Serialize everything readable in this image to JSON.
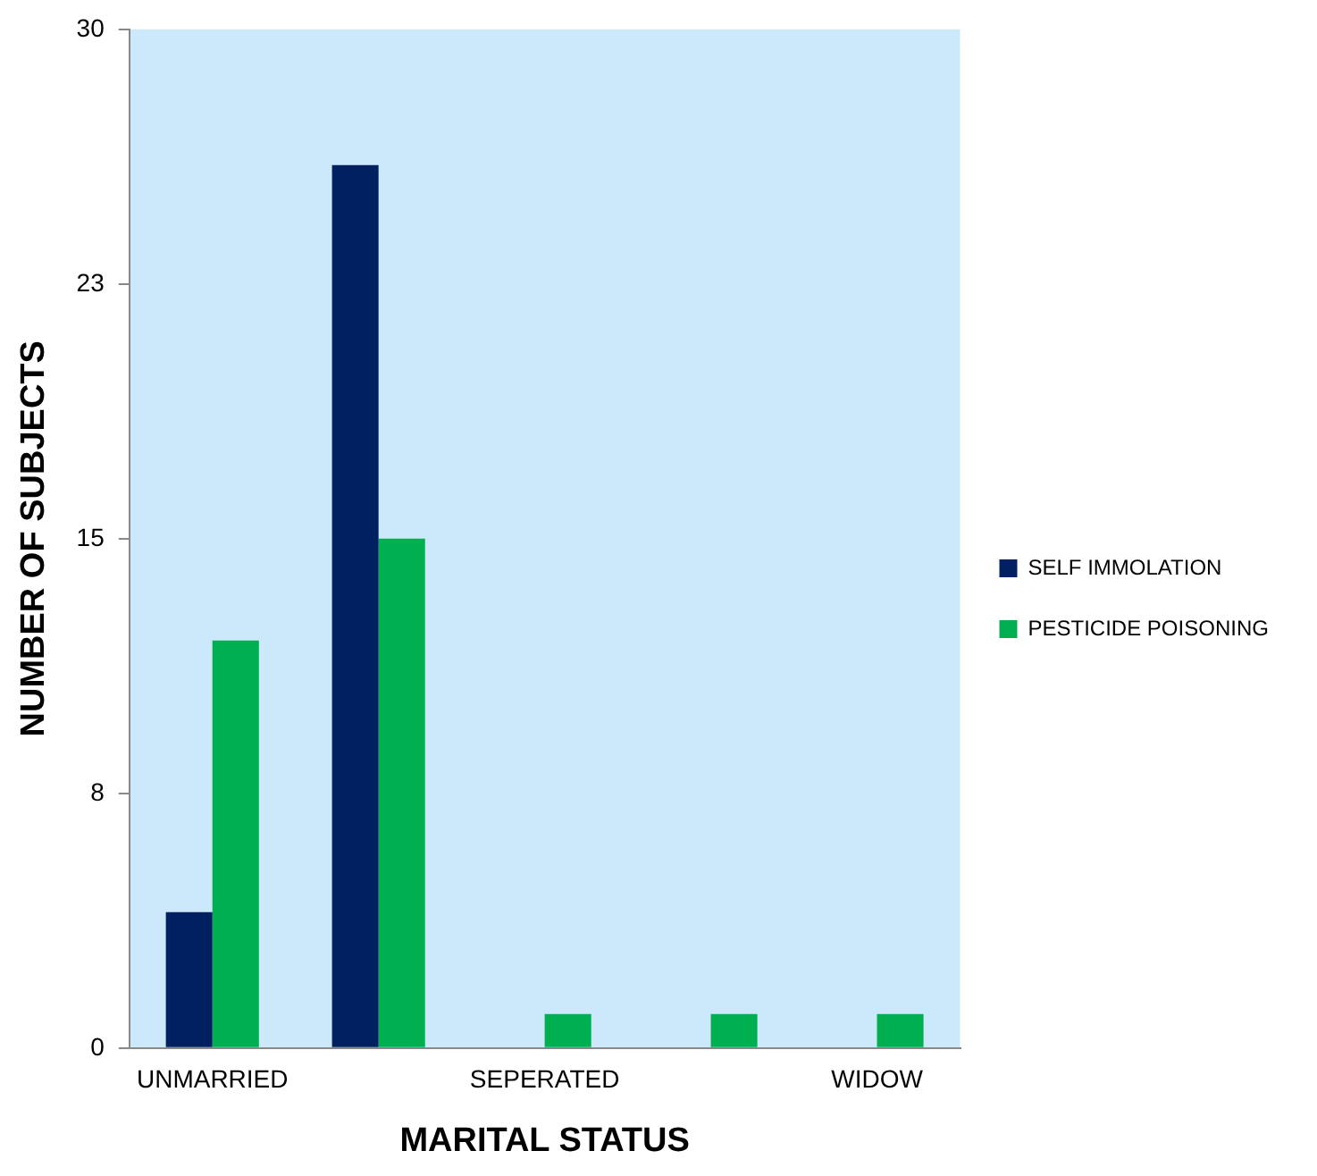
{
  "chart_data": {
    "type": "bar",
    "xlabel": "MARITAL STATUS",
    "ylabel": "NUMBER OF SUBJECTS",
    "categories": [
      "UNMARRIED",
      null,
      "SEPERATED",
      null,
      "WIDOW"
    ],
    "series": [
      {
        "name": "SELF IMMOLATION",
        "color": "#002060",
        "values": [
          4,
          26,
          0,
          0,
          0
        ]
      },
      {
        "name": "PESTICIDE POISONING",
        "color": "#00b050",
        "values": [
          12,
          15,
          1,
          1,
          1
        ]
      }
    ],
    "ylim": [
      0,
      30
    ],
    "yticks": [
      0,
      {
        "value": 7.5,
        "label": "8"
      },
      15,
      {
        "value": 22.5,
        "label": "23"
      },
      30
    ],
    "grid": false,
    "legend": "right"
  }
}
